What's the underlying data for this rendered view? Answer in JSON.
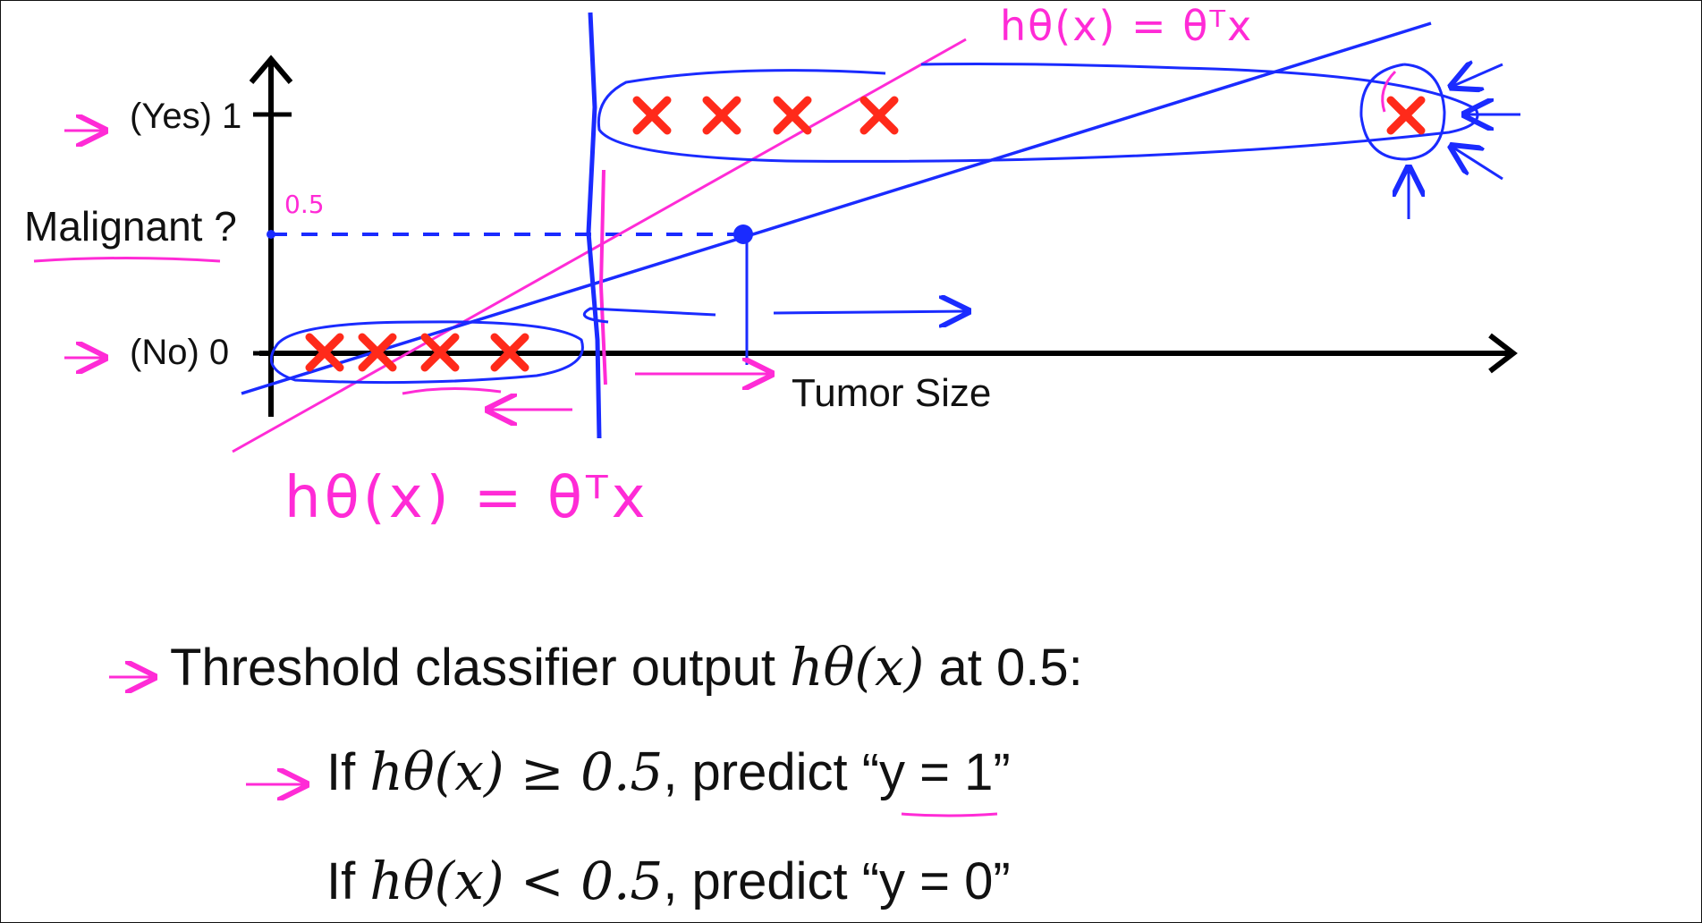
{
  "plot": {
    "y_axis": {
      "title": "Malignant ?",
      "tick_yes": "(Yes) 1",
      "tick_no": "(No) 0"
    },
    "x_axis": {
      "title": "Tumor Size"
    },
    "threshold_label": "0.5",
    "annotation_bottom": "hθ(x) = θᵀx",
    "annotation_top": "hθ(x) = θᵀx",
    "data_positive_count": 5,
    "data_negative_count": 4
  },
  "colors": {
    "text": "#111111",
    "marker": "#ff2a1a",
    "blue_ink": "#1a2bff",
    "pink_ink": "#ff2bd6"
  },
  "rules": {
    "intro_text": "Threshold classifier output",
    "intro_math": "hθ(x)",
    "intro_suffix": "at 0.5:",
    "if_word": "If",
    "rule1_math": "hθ(x) ≥ 0.5",
    "rule1_predict": ", predict “y = 1”",
    "rule0_math": "hθ(x) < 0.5",
    "rule0_predict": ", predict “y = 0”"
  }
}
